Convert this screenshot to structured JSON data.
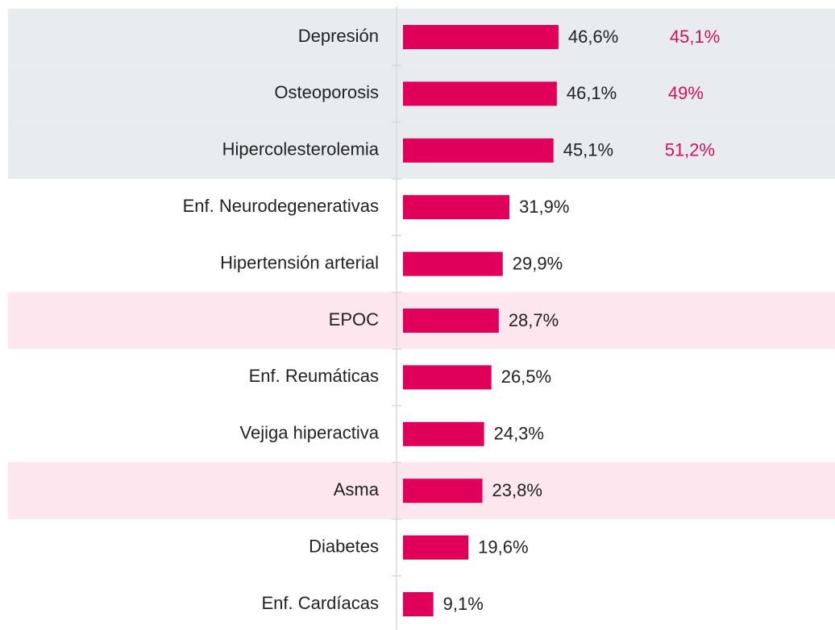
{
  "chart_data": {
    "type": "bar",
    "orientation": "horizontal",
    "categories": [
      "Depresión",
      "Osteoporosis",
      "Hipercolesterolemia",
      "Enf. Neurodegenerativas",
      "Hipertensión arterial",
      "EPOC",
      "Enf. Reumáticas",
      "Vejiga hiperactiva",
      "Asma",
      "Diabetes",
      "Enf. Cardíacas"
    ],
    "values": [
      46.6,
      46.1,
      45.1,
      31.9,
      29.9,
      28.7,
      26.5,
      24.3,
      23.8,
      19.6,
      9.1
    ],
    "value_labels": [
      "46,6%",
      "46,1%",
      "45,1%",
      "31,9%",
      "29,9%",
      "28,7%",
      "26,5%",
      "24,3%",
      "23,8%",
      "19,6%",
      "9,1%"
    ],
    "color": "#e0005a",
    "comparison": {
      "color": "#d0105e",
      "values": [
        45.1,
        49,
        51.2,
        null,
        null,
        null,
        null,
        null,
        null,
        null,
        null
      ],
      "value_labels": [
        "45,1%",
        "49%",
        "51,2%",
        null,
        null,
        null,
        null,
        null,
        null,
        null,
        null
      ]
    },
    "band_colors": [
      "#e9ecee",
      "#e9ecee",
      "#e9ecee",
      null,
      null,
      "#fde6ee",
      null,
      null,
      "#fde6ee",
      null,
      null
    ],
    "xlim": [
      0,
      100
    ]
  }
}
